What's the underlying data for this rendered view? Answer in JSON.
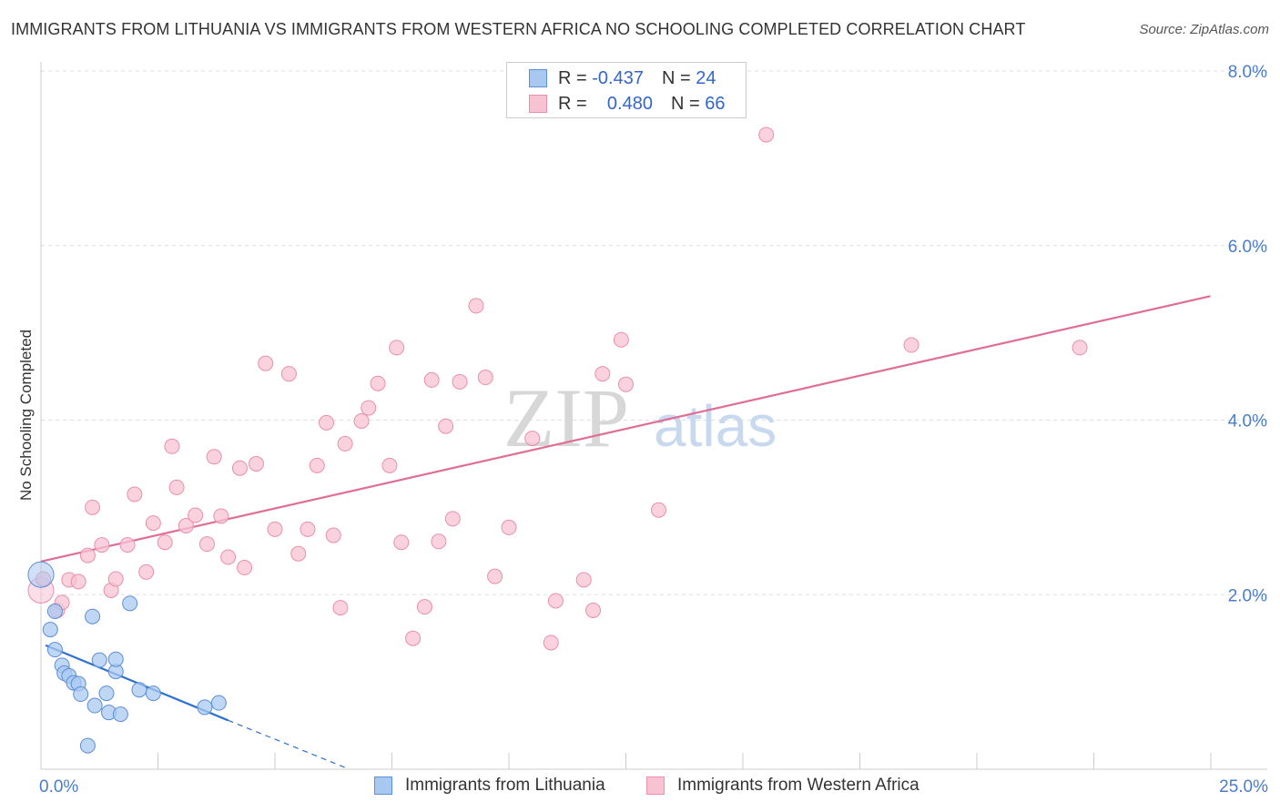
{
  "title": "IMMIGRANTS FROM LITHUANIA VS IMMIGRANTS FROM WESTERN AFRICA NO SCHOOLING COMPLETED CORRELATION CHART",
  "source": "Source: ZipAtlas.com",
  "watermark": {
    "zip": "ZIP",
    "atlas": "atlas"
  },
  "legend": {
    "rows": [
      {
        "r_label": "R =",
        "r_value": "-0.437",
        "n_label": "N =",
        "n_value": "24"
      },
      {
        "r_label": "R =",
        "r_value": "0.480",
        "n_label": "N =",
        "n_value": "66"
      }
    ]
  },
  "colors": {
    "lithuania_fill": "#a9c8f0",
    "lithuania_stroke": "#5b8fd6",
    "lithuania_line": "#2f6fd0",
    "wafrica_fill": "#f7c3d3",
    "wafrica_stroke": "#e98fae",
    "wafrica_line": "#e06d96",
    "tick_text": "#4a7cc9",
    "grid": "#dddddd"
  },
  "chart_data": {
    "type": "scatter",
    "title": "IMMIGRANTS FROM LITHUANIA VS IMMIGRANTS FROM WESTERN AFRICA NO SCHOOLING COMPLETED CORRELATION CHART",
    "xlabel": "",
    "ylabel": "No Schooling Completed",
    "xlim": [
      0,
      25
    ],
    "ylim": [
      0,
      8
    ],
    "x_tick_labels": [
      "0.0%",
      "25.0%"
    ],
    "y_ticks": [
      2,
      4,
      6,
      8
    ],
    "y_tick_labels": [
      "2.0%",
      "4.0%",
      "6.0%",
      "8.0%"
    ],
    "grid": true,
    "legend_position": "top-center",
    "series": [
      {
        "name": "Immigrants from Lithuania",
        "r": -0.437,
        "n": 24,
        "trend": {
          "x": [
            0.1,
            4.0
          ],
          "y": [
            1.42,
            0.56
          ],
          "dashed_extension_to": [
            6.5,
            0.02
          ]
        },
        "points": [
          [
            0.0,
            2.23
          ],
          [
            0.2,
            1.6
          ],
          [
            0.3,
            1.37
          ],
          [
            0.3,
            1.81
          ],
          [
            0.45,
            1.19
          ],
          [
            0.5,
            1.1
          ],
          [
            0.6,
            1.07
          ],
          [
            0.7,
            0.99
          ],
          [
            0.8,
            0.98
          ],
          [
            0.85,
            0.86
          ],
          [
            1.0,
            0.27
          ],
          [
            1.1,
            1.75
          ],
          [
            1.15,
            0.73
          ],
          [
            1.25,
            1.25
          ],
          [
            1.4,
            0.87
          ],
          [
            1.45,
            0.65
          ],
          [
            1.6,
            1.12
          ],
          [
            1.6,
            1.26
          ],
          [
            1.7,
            0.63
          ],
          [
            1.9,
            1.9
          ],
          [
            2.1,
            0.91
          ],
          [
            2.4,
            0.87
          ],
          [
            3.5,
            0.71
          ],
          [
            3.8,
            0.76
          ]
        ]
      },
      {
        "name": "Immigrants from Western Africa",
        "r": 0.48,
        "n": 66,
        "trend": {
          "x": [
            0.0,
            24.99
          ],
          "y": [
            2.38,
            5.42
          ]
        },
        "points": [
          [
            0.0,
            2.05
          ],
          [
            0.35,
            1.82
          ],
          [
            0.45,
            1.91
          ],
          [
            0.6,
            2.17
          ],
          [
            0.8,
            2.15
          ],
          [
            1.0,
            2.45
          ],
          [
            1.1,
            3.0
          ],
          [
            1.3,
            2.57
          ],
          [
            1.5,
            2.05
          ],
          [
            1.6,
            2.18
          ],
          [
            1.85,
            2.57
          ],
          [
            2.0,
            3.15
          ],
          [
            2.25,
            2.26
          ],
          [
            2.4,
            2.82
          ],
          [
            2.65,
            2.6
          ],
          [
            2.8,
            3.7
          ],
          [
            2.9,
            3.23
          ],
          [
            3.1,
            2.79
          ],
          [
            3.3,
            2.91
          ],
          [
            3.55,
            2.58
          ],
          [
            3.7,
            3.58
          ],
          [
            3.85,
            2.9
          ],
          [
            4.0,
            2.43
          ],
          [
            4.25,
            3.45
          ],
          [
            4.35,
            2.31
          ],
          [
            4.6,
            3.5
          ],
          [
            4.8,
            4.65
          ],
          [
            5.0,
            2.75
          ],
          [
            5.3,
            4.53
          ],
          [
            5.5,
            2.47
          ],
          [
            5.7,
            2.75
          ],
          [
            5.9,
            3.48
          ],
          [
            6.1,
            3.97
          ],
          [
            6.25,
            2.68
          ],
          [
            6.4,
            1.85
          ],
          [
            6.5,
            3.73
          ],
          [
            6.85,
            3.99
          ],
          [
            7.0,
            4.14
          ],
          [
            7.2,
            4.42
          ],
          [
            7.45,
            3.48
          ],
          [
            7.6,
            4.83
          ],
          [
            7.7,
            2.6
          ],
          [
            7.95,
            1.5
          ],
          [
            8.2,
            1.86
          ],
          [
            8.35,
            4.46
          ],
          [
            8.5,
            2.61
          ],
          [
            8.65,
            3.93
          ],
          [
            8.8,
            2.87
          ],
          [
            8.95,
            4.44
          ],
          [
            9.3,
            5.31
          ],
          [
            9.5,
            4.49
          ],
          [
            9.7,
            2.21
          ],
          [
            10.0,
            2.77
          ],
          [
            10.5,
            3.79
          ],
          [
            10.9,
            1.45
          ],
          [
            11.0,
            1.93
          ],
          [
            11.6,
            2.17
          ],
          [
            11.8,
            1.82
          ],
          [
            12.0,
            4.53
          ],
          [
            12.4,
            4.92
          ],
          [
            12.5,
            4.41
          ],
          [
            13.2,
            2.97
          ],
          [
            15.5,
            7.27
          ],
          [
            18.6,
            4.86
          ],
          [
            22.2,
            4.83
          ],
          [
            0.05,
            2.18
          ]
        ]
      }
    ]
  },
  "bottom_legend": [
    {
      "label": "Immigrants from Lithuania"
    },
    {
      "label": "Immigrants from Western Africa"
    }
  ]
}
